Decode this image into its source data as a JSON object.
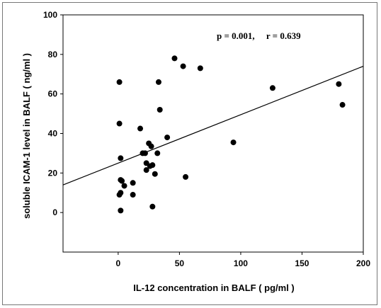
{
  "chart_data": {
    "type": "scatter",
    "xlabel": "IL-12 concentration in BALF ( pg/ml )",
    "ylabel": "soluble ICAM-1 level in BALF ( ng/ml )",
    "annotation": "p = 0.001,     r = 0.639",
    "xlim": [
      -45,
      200
    ],
    "ylim": [
      -20,
      100
    ],
    "xticks": [
      0,
      50,
      100,
      150,
      200
    ],
    "yticks": [
      0,
      20,
      40,
      60,
      80,
      100
    ],
    "grid": false,
    "legend": "none",
    "marker_color": "#000000",
    "points": [
      {
        "x": 1,
        "y": 66
      },
      {
        "x": 1,
        "y": 45
      },
      {
        "x": 2,
        "y": 27.5
      },
      {
        "x": 2,
        "y": 16.5
      },
      {
        "x": 3,
        "y": 16
      },
      {
        "x": 2,
        "y": 10
      },
      {
        "x": 1,
        "y": 9
      },
      {
        "x": 2,
        "y": 1
      },
      {
        "x": 5,
        "y": 13.5
      },
      {
        "x": 12,
        "y": 15
      },
      {
        "x": 12,
        "y": 9
      },
      {
        "x": 18,
        "y": 42.5
      },
      {
        "x": 20,
        "y": 30
      },
      {
        "x": 22,
        "y": 30
      },
      {
        "x": 23,
        "y": 25
      },
      {
        "x": 23,
        "y": 21.5
      },
      {
        "x": 25,
        "y": 35
      },
      {
        "x": 26,
        "y": 23.5
      },
      {
        "x": 27,
        "y": 33.5
      },
      {
        "x": 28,
        "y": 24
      },
      {
        "x": 28,
        "y": 3
      },
      {
        "x": 30,
        "y": 19.5
      },
      {
        "x": 32,
        "y": 30
      },
      {
        "x": 33,
        "y": 66
      },
      {
        "x": 34,
        "y": 52
      },
      {
        "x": 40,
        "y": 38
      },
      {
        "x": 46,
        "y": 78
      },
      {
        "x": 53,
        "y": 74
      },
      {
        "x": 55,
        "y": 18
      },
      {
        "x": 67,
        "y": 73
      },
      {
        "x": 94,
        "y": 35.5
      },
      {
        "x": 126,
        "y": 63
      },
      {
        "x": 180,
        "y": 65
      },
      {
        "x": 183,
        "y": 54.5
      }
    ],
    "trendline": {
      "slope": 0.245,
      "intercept": 25
    }
  }
}
